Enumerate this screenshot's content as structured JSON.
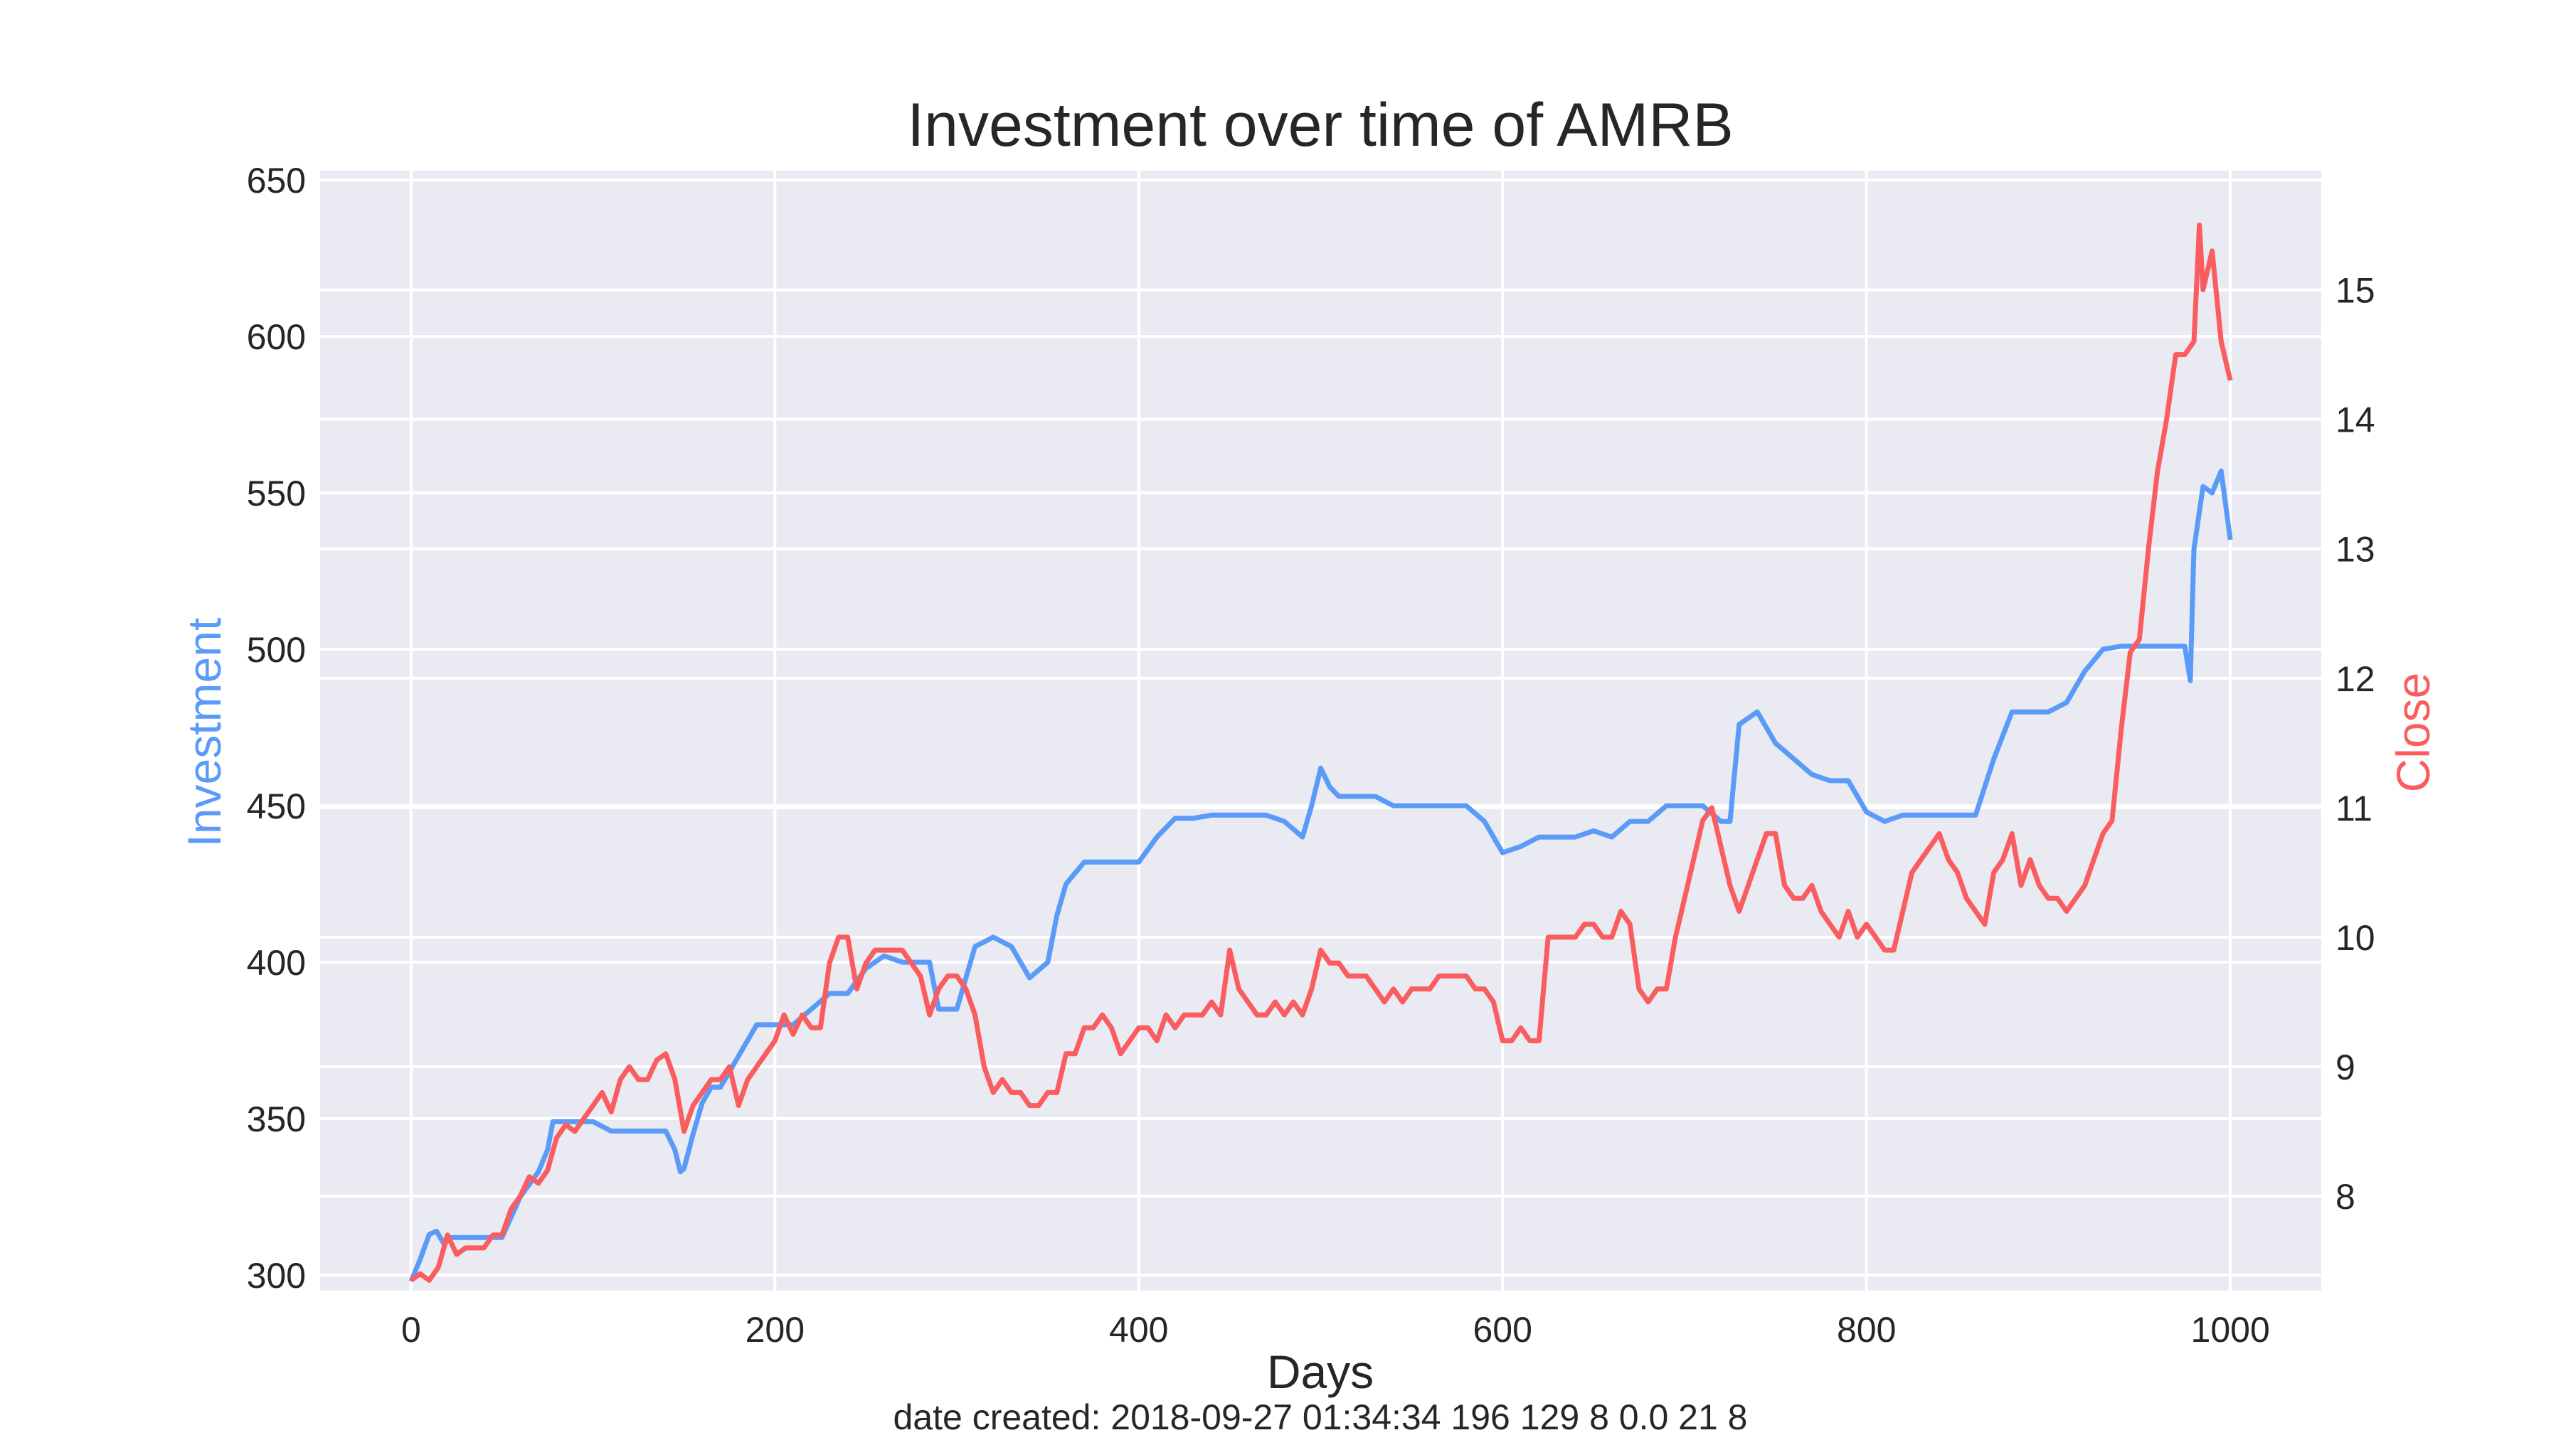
{
  "chart_data": {
    "type": "line",
    "title": "Investment over time of AMRB",
    "xlabel": "Days",
    "ylabel_left": "Investment",
    "ylabel_right": "Close",
    "xlim": [
      -50,
      1050
    ],
    "ylim_left": [
      295,
      653
    ],
    "ylim_right": [
      7.27,
      15.92
    ],
    "x_ticks": [
      0,
      200,
      400,
      600,
      800,
      1000
    ],
    "y_ticks_left": [
      300,
      350,
      400,
      450,
      500,
      550,
      600,
      650
    ],
    "y_ticks_right": [
      8,
      9,
      10,
      11,
      12,
      13,
      14,
      15
    ],
    "grid": true,
    "colors": {
      "investment": "#5b9bf8",
      "close": "#f95d5f",
      "plot_bg": "#eaeaf2",
      "grid": "#ffffff"
    },
    "series": [
      {
        "axis": "left",
        "x": [
          0,
          5,
          10,
          14,
          18,
          22,
          26,
          30,
          40,
          50,
          60,
          70,
          75,
          78,
          80,
          90,
          100,
          110,
          120,
          130,
          140,
          145,
          148,
          150,
          155,
          160,
          165,
          170,
          180,
          190,
          200,
          210,
          220,
          230,
          240,
          250,
          260,
          270,
          280,
          285,
          290,
          300,
          310,
          320,
          330,
          340,
          350,
          355,
          360,
          370,
          380,
          390,
          400,
          410,
          420,
          430,
          440,
          450,
          460,
          470,
          480,
          490,
          495,
          500,
          505,
          510,
          520,
          530,
          540,
          550,
          560,
          570,
          580,
          590,
          600,
          610,
          620,
          630,
          640,
          650,
          660,
          670,
          680,
          690,
          700,
          710,
          720,
          725,
          730,
          740,
          750,
          760,
          770,
          780,
          790,
          800,
          810,
          820,
          830,
          840,
          850,
          860,
          870,
          880,
          890,
          900,
          910,
          920,
          930,
          940,
          950,
          960,
          970,
          975,
          978,
          980,
          985,
          990,
          995,
          1000
        ],
        "y": [
          298,
          305,
          313,
          314,
          310,
          312,
          312,
          312,
          312,
          312,
          325,
          333,
          340,
          349,
          349,
          349,
          349,
          346,
          346,
          346,
          346,
          340,
          333,
          334,
          345,
          355,
          360,
          360,
          370,
          380,
          380,
          380,
          385,
          390,
          390,
          398,
          402,
          400,
          400,
          400,
          385,
          385,
          405,
          408,
          405,
          395,
          400,
          415,
          425,
          432,
          432,
          432,
          432,
          440,
          446,
          446,
          447,
          447,
          447,
          447,
          445,
          440,
          450,
          462,
          456,
          453,
          453,
          453,
          450,
          450,
          450,
          450,
          450,
          445,
          435,
          437,
          440,
          440,
          440,
          442,
          440,
          445,
          445,
          450,
          450,
          450,
          445,
          445,
          476,
          480,
          470,
          465,
          460,
          458,
          458,
          448,
          445,
          447,
          447,
          447,
          447,
          447,
          465,
          480,
          480,
          480,
          483,
          493,
          500,
          501,
          501,
          501,
          501,
          501,
          490,
          532,
          552,
          550,
          557,
          535
        ]
      },
      {
        "axis": "right",
        "x": [
          0,
          5,
          10,
          15,
          20,
          25,
          30,
          35,
          40,
          45,
          50,
          55,
          60,
          65,
          70,
          75,
          80,
          85,
          90,
          95,
          100,
          105,
          110,
          115,
          120,
          125,
          130,
          135,
          140,
          145,
          150,
          155,
          160,
          165,
          170,
          175,
          180,
          185,
          190,
          195,
          200,
          205,
          210,
          215,
          220,
          225,
          230,
          235,
          240,
          245,
          250,
          255,
          260,
          265,
          270,
          275,
          280,
          285,
          290,
          295,
          300,
          305,
          310,
          315,
          320,
          325,
          330,
          335,
          340,
          345,
          350,
          355,
          360,
          365,
          370,
          375,
          380,
          385,
          390,
          395,
          400,
          405,
          410,
          415,
          420,
          425,
          430,
          435,
          440,
          445,
          450,
          455,
          460,
          465,
          470,
          475,
          480,
          485,
          490,
          495,
          500,
          505,
          510,
          515,
          520,
          525,
          530,
          535,
          540,
          545,
          550,
          555,
          560,
          565,
          570,
          575,
          580,
          585,
          590,
          595,
          600,
          605,
          610,
          615,
          620,
          625,
          630,
          635,
          640,
          645,
          650,
          655,
          660,
          665,
          670,
          675,
          680,
          685,
          690,
          695,
          700,
          705,
          710,
          715,
          720,
          725,
          730,
          735,
          740,
          745,
          750,
          755,
          760,
          765,
          770,
          775,
          780,
          785,
          790,
          795,
          800,
          805,
          810,
          815,
          820,
          825,
          830,
          835,
          840,
          845,
          850,
          855,
          860,
          865,
          870,
          875,
          880,
          885,
          890,
          895,
          900,
          905,
          910,
          915,
          920,
          925,
          930,
          935,
          940,
          945,
          950,
          955,
          960,
          965,
          970,
          975,
          980,
          983,
          985,
          990,
          995,
          1000
        ],
        "y": [
          7.35,
          7.4,
          7.35,
          7.45,
          7.7,
          7.55,
          7.6,
          7.6,
          7.6,
          7.7,
          7.7,
          7.9,
          8.0,
          8.15,
          8.1,
          8.2,
          8.45,
          8.55,
          8.5,
          8.6,
          8.7,
          8.8,
          8.65,
          8.9,
          9.0,
          8.9,
          8.9,
          9.05,
          9.1,
          8.9,
          8.5,
          8.7,
          8.8,
          8.9,
          8.9,
          9.0,
          8.7,
          8.9,
          9.0,
          9.1,
          9.2,
          9.4,
          9.25,
          9.4,
          9.3,
          9.3,
          9.8,
          10.0,
          10.0,
          9.6,
          9.8,
          9.9,
          9.9,
          9.9,
          9.9,
          9.8,
          9.7,
          9.4,
          9.6,
          9.7,
          9.7,
          9.6,
          9.4,
          9.0,
          8.8,
          8.9,
          8.8,
          8.8,
          8.7,
          8.7,
          8.8,
          8.8,
          9.1,
          9.1,
          9.3,
          9.3,
          9.4,
          9.3,
          9.1,
          9.2,
          9.3,
          9.3,
          9.2,
          9.4,
          9.3,
          9.4,
          9.4,
          9.4,
          9.5,
          9.4,
          9.9,
          9.6,
          9.5,
          9.4,
          9.4,
          9.5,
          9.4,
          9.5,
          9.4,
          9.6,
          9.9,
          9.8,
          9.8,
          9.7,
          9.7,
          9.7,
          9.6,
          9.5,
          9.6,
          9.5,
          9.6,
          9.6,
          9.6,
          9.7,
          9.7,
          9.7,
          9.7,
          9.6,
          9.6,
          9.5,
          9.2,
          9.2,
          9.3,
          9.2,
          9.2,
          10.0,
          10.0,
          10.0,
          10.0,
          10.1,
          10.1,
          10.0,
          10.0,
          10.2,
          10.1,
          9.6,
          9.5,
          9.6,
          9.6,
          10.0,
          10.3,
          10.6,
          10.9,
          11.0,
          10.7,
          10.4,
          10.2,
          10.4,
          10.6,
          10.8,
          10.8,
          10.4,
          10.3,
          10.3,
          10.4,
          10.2,
          10.1,
          10.0,
          10.2,
          10.0,
          10.1,
          10.0,
          9.9,
          9.9,
          10.2,
          10.5,
          10.6,
          10.7,
          10.8,
          10.6,
          10.5,
          10.3,
          10.2,
          10.1,
          10.5,
          10.6,
          10.8,
          10.4,
          10.6,
          10.4,
          10.3,
          10.3,
          10.2,
          10.3,
          10.4,
          10.6,
          10.8,
          10.9,
          11.6,
          12.2,
          12.3,
          13.0,
          13.6,
          14.0,
          14.5,
          14.5,
          14.6,
          15.5,
          15.0,
          15.3,
          14.6,
          14.3
        ]
      }
    ]
  },
  "footer_text": "date created: 2018-09-27 01:34:34 196 129 8 0.0 21 8"
}
